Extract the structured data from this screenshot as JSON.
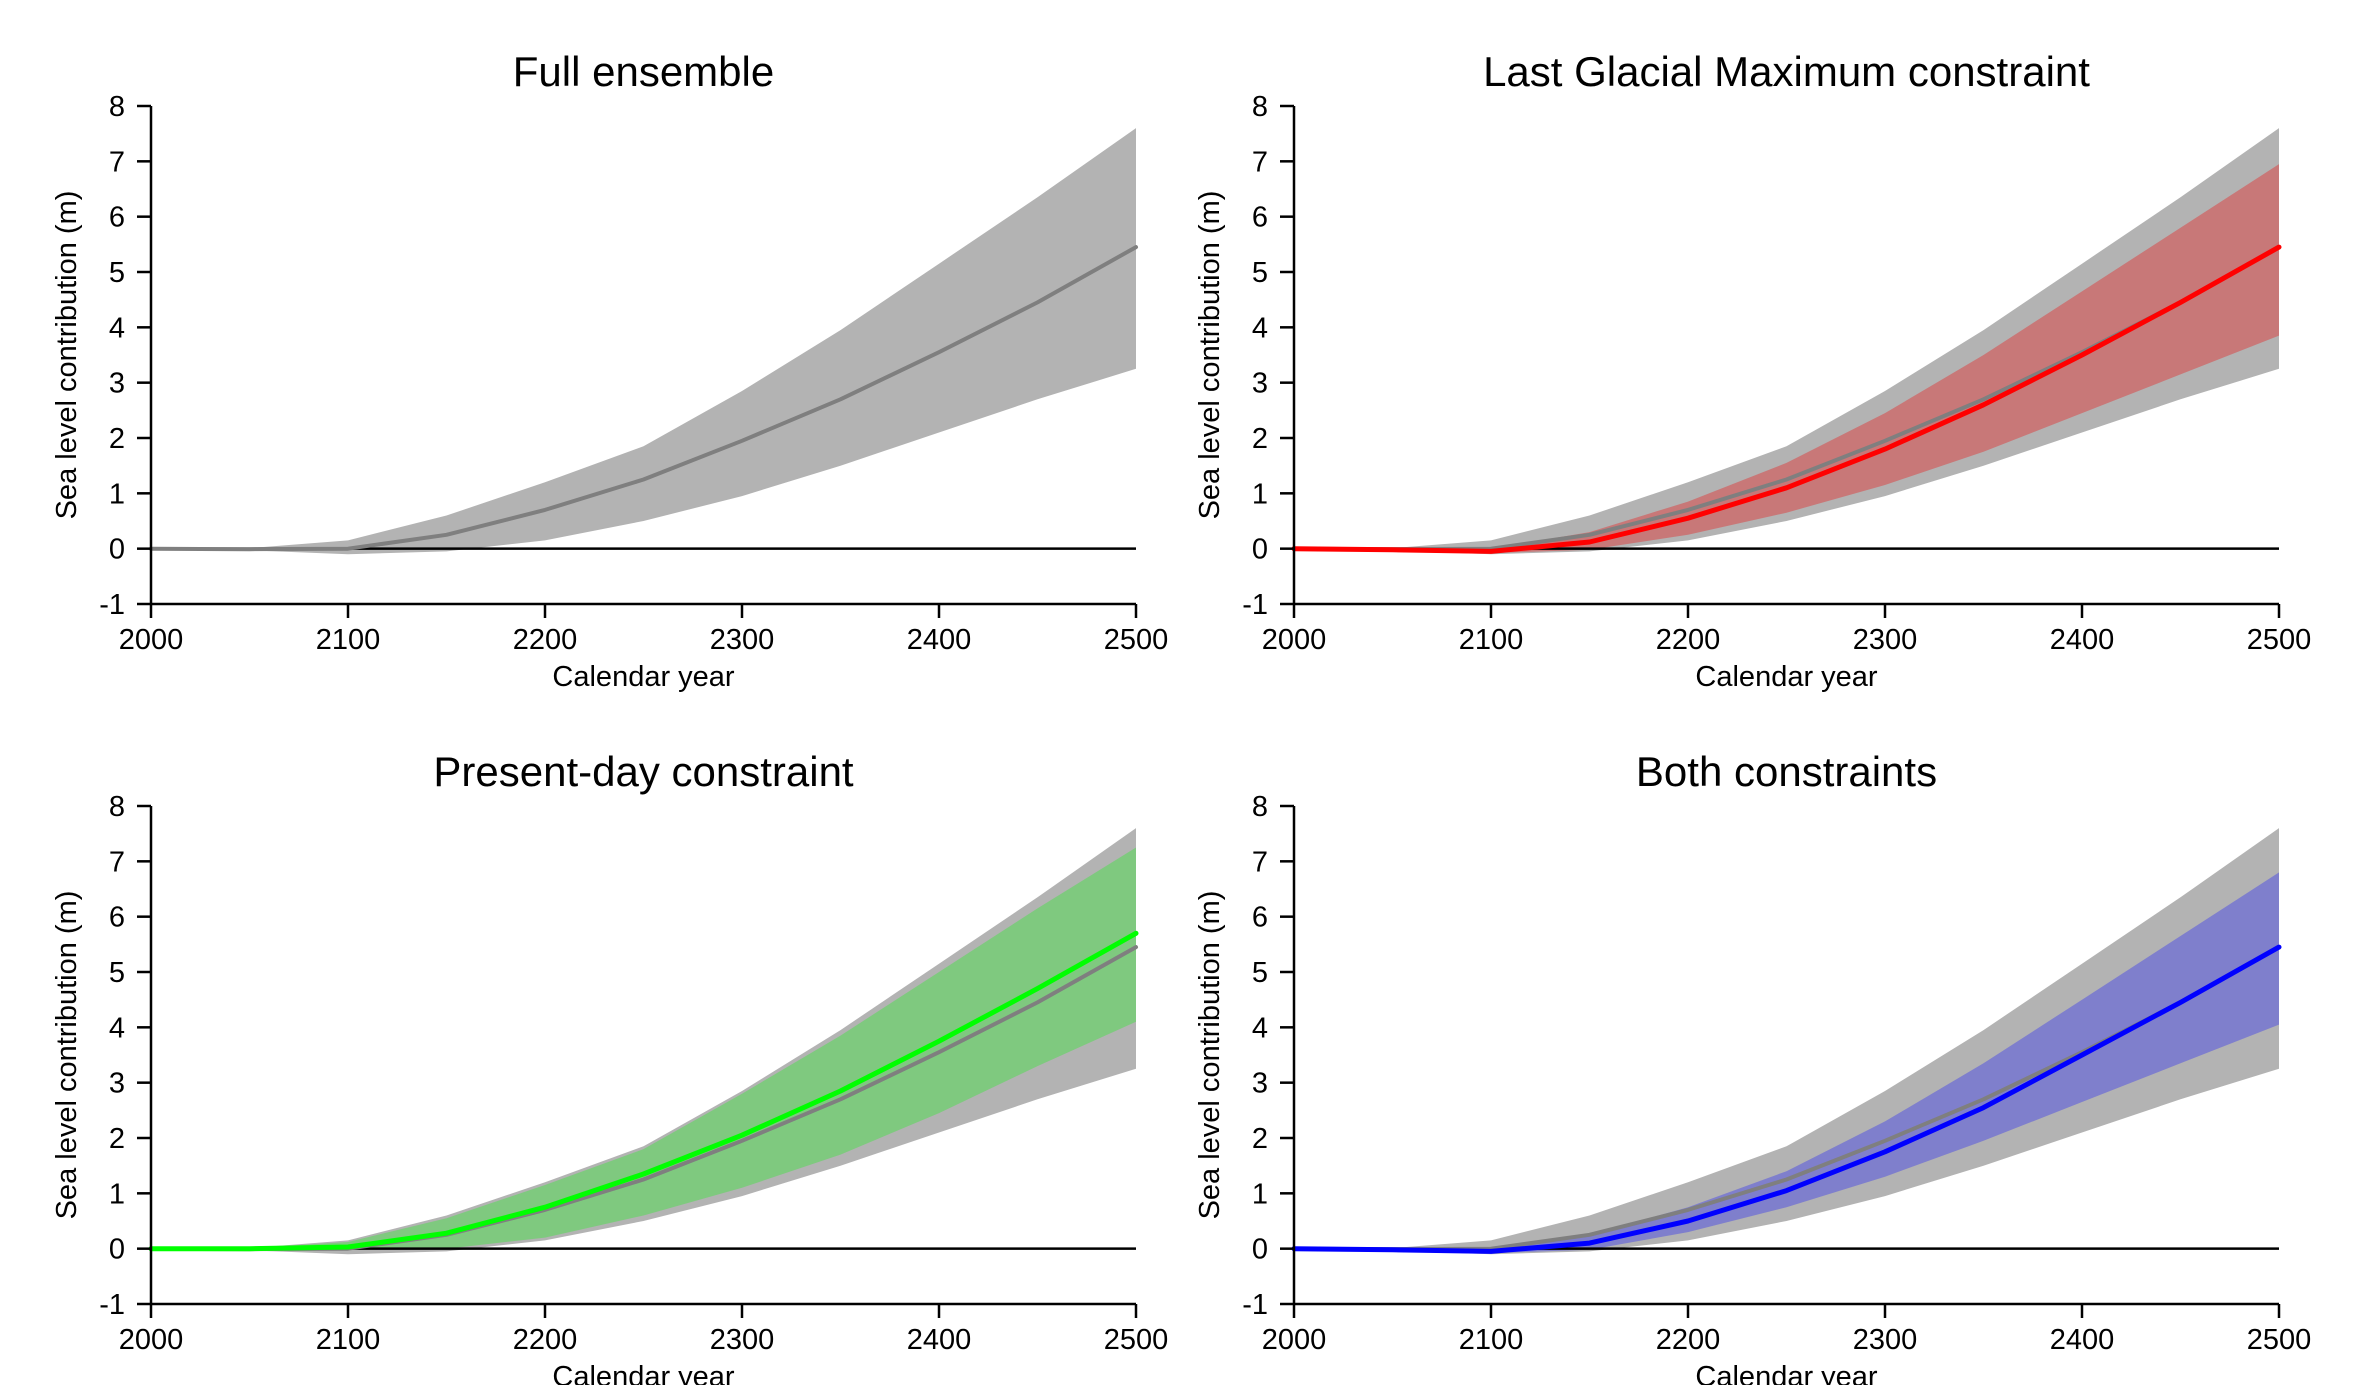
{
  "chart_data": [
    {
      "type": "area",
      "title": "Full ensemble",
      "xlabel": "Calendar year",
      "ylabel": "Sea level contribution (m)",
      "xlim": [
        2000,
        2500
      ],
      "ylim": [
        -1,
        8
      ],
      "x_ticks": [
        "2000",
        "2100",
        "2200",
        "2300",
        "2400",
        "2500"
      ],
      "y_ticks": [
        "-1",
        "0",
        "1",
        "2",
        "3",
        "4",
        "5",
        "6",
        "7",
        "8"
      ],
      "zero_line": true,
      "grid": false,
      "x": [
        2000,
        2050,
        2100,
        2150,
        2200,
        2250,
        2300,
        2350,
        2400,
        2450,
        2500
      ],
      "series": [
        {
          "color": "#7f7f7f",
          "band_color": "#b3b3b3",
          "median": [
            0,
            -0.01,
            0.0,
            0.25,
            0.7,
            1.25,
            1.95,
            2.7,
            3.55,
            4.45,
            5.45
          ],
          "lower": [
            0,
            -0.03,
            -0.1,
            -0.05,
            0.15,
            0.5,
            0.95,
            1.5,
            2.1,
            2.7,
            3.25
          ],
          "upper": [
            0,
            0.01,
            0.15,
            0.6,
            1.2,
            1.85,
            2.85,
            3.95,
            5.15,
            6.35,
            7.6
          ]
        }
      ]
    },
    {
      "type": "area",
      "title": "Last Glacial Maximum constraint",
      "xlabel": "Calendar year",
      "ylabel": "Sea level contribution (m)",
      "xlim": [
        2000,
        2500
      ],
      "ylim": [
        -1,
        8
      ],
      "x_ticks": [
        "2000",
        "2100",
        "2200",
        "2300",
        "2400",
        "2500"
      ],
      "y_ticks": [
        "-1",
        "0",
        "1",
        "2",
        "3",
        "4",
        "5",
        "6",
        "7",
        "8"
      ],
      "zero_line": true,
      "grid": false,
      "x": [
        2000,
        2050,
        2100,
        2150,
        2200,
        2250,
        2300,
        2350,
        2400,
        2450,
        2500
      ],
      "series": [
        {
          "color": "#7f7f7f",
          "band_color": "#b3b3b3",
          "median": [
            0,
            -0.01,
            0.0,
            0.25,
            0.7,
            1.25,
            1.95,
            2.7,
            3.55,
            4.45,
            5.45
          ],
          "lower": [
            0,
            -0.03,
            -0.1,
            -0.05,
            0.15,
            0.5,
            0.95,
            1.5,
            2.1,
            2.7,
            3.25
          ],
          "upper": [
            0,
            0.01,
            0.15,
            0.6,
            1.2,
            1.85,
            2.85,
            3.95,
            5.15,
            6.35,
            7.6
          ]
        },
        {
          "color": "#ff0000",
          "band_color": "#c87878",
          "median": [
            0,
            -0.02,
            -0.05,
            0.12,
            0.55,
            1.1,
            1.8,
            2.6,
            3.5,
            4.45,
            5.45
          ],
          "lower": [
            0,
            -0.03,
            -0.08,
            -0.02,
            0.25,
            0.65,
            1.15,
            1.75,
            2.45,
            3.15,
            3.85
          ],
          "upper": [
            0,
            -0.01,
            0.0,
            0.3,
            0.85,
            1.55,
            2.45,
            3.5,
            4.65,
            5.8,
            6.95
          ]
        }
      ]
    },
    {
      "type": "area",
      "title": "Present-day constraint",
      "xlabel": "Calendar year",
      "ylabel": "Sea level contribution (m)",
      "xlim": [
        2000,
        2500
      ],
      "ylim": [
        -1,
        8
      ],
      "x_ticks": [
        "2000",
        "2100",
        "2200",
        "2300",
        "2400",
        "2500"
      ],
      "y_ticks": [
        "-1",
        "0",
        "1",
        "2",
        "3",
        "4",
        "5",
        "6",
        "7",
        "8"
      ],
      "zero_line": true,
      "grid": false,
      "x": [
        2000,
        2050,
        2100,
        2150,
        2200,
        2250,
        2300,
        2350,
        2400,
        2450,
        2500
      ],
      "series": [
        {
          "color": "#7f7f7f",
          "band_color": "#b3b3b3",
          "median": [
            0,
            -0.01,
            0.0,
            0.25,
            0.7,
            1.25,
            1.95,
            2.7,
            3.55,
            4.45,
            5.45
          ],
          "lower": [
            0,
            -0.03,
            -0.1,
            -0.05,
            0.15,
            0.5,
            0.95,
            1.5,
            2.1,
            2.7,
            3.25
          ],
          "upper": [
            0,
            0.01,
            0.15,
            0.6,
            1.2,
            1.85,
            2.85,
            3.95,
            5.15,
            6.35,
            7.6
          ]
        },
        {
          "color": "#00ff00",
          "band_color": "#7fc97f",
          "median": [
            0,
            0.0,
            0.03,
            0.28,
            0.75,
            1.35,
            2.05,
            2.85,
            3.75,
            4.7,
            5.7
          ],
          "lower": [
            0,
            -0.01,
            -0.02,
            0.0,
            0.2,
            0.6,
            1.1,
            1.7,
            2.45,
            3.3,
            4.1
          ],
          "upper": [
            0,
            0.01,
            0.12,
            0.55,
            1.15,
            1.8,
            2.8,
            3.85,
            5.0,
            6.15,
            7.25
          ]
        }
      ]
    },
    {
      "type": "area",
      "title": "Both constraints",
      "xlabel": "Calendar year",
      "ylabel": "Sea level contribution (m)",
      "xlim": [
        2000,
        2500
      ],
      "ylim": [
        -1,
        8
      ],
      "x_ticks": [
        "2000",
        "2100",
        "2200",
        "2300",
        "2400",
        "2500"
      ],
      "y_ticks": [
        "-1",
        "0",
        "1",
        "2",
        "3",
        "4",
        "5",
        "6",
        "7",
        "8"
      ],
      "zero_line": true,
      "grid": false,
      "x": [
        2000,
        2050,
        2100,
        2150,
        2200,
        2250,
        2300,
        2350,
        2400,
        2450,
        2500
      ],
      "series": [
        {
          "color": "#7f7f7f",
          "band_color": "#b3b3b3",
          "median": [
            0,
            -0.01,
            0.0,
            0.25,
            0.7,
            1.25,
            1.95,
            2.7,
            3.55,
            4.45,
            5.45
          ],
          "lower": [
            0,
            -0.03,
            -0.1,
            -0.05,
            0.15,
            0.5,
            0.95,
            1.5,
            2.1,
            2.7,
            3.25
          ],
          "upper": [
            0,
            0.01,
            0.15,
            0.6,
            1.2,
            1.85,
            2.85,
            3.95,
            5.15,
            6.35,
            7.6
          ]
        },
        {
          "color": "#0000ff",
          "band_color": "#7f7fcc",
          "median": [
            0,
            -0.02,
            -0.05,
            0.1,
            0.5,
            1.05,
            1.75,
            2.55,
            3.5,
            4.45,
            5.45
          ],
          "lower": [
            0,
            -0.03,
            -0.08,
            -0.02,
            0.3,
            0.75,
            1.3,
            1.95,
            2.65,
            3.35,
            4.05
          ],
          "upper": [
            0,
            -0.01,
            0.02,
            0.25,
            0.75,
            1.4,
            2.3,
            3.35,
            4.5,
            5.65,
            6.8
          ]
        }
      ]
    }
  ]
}
